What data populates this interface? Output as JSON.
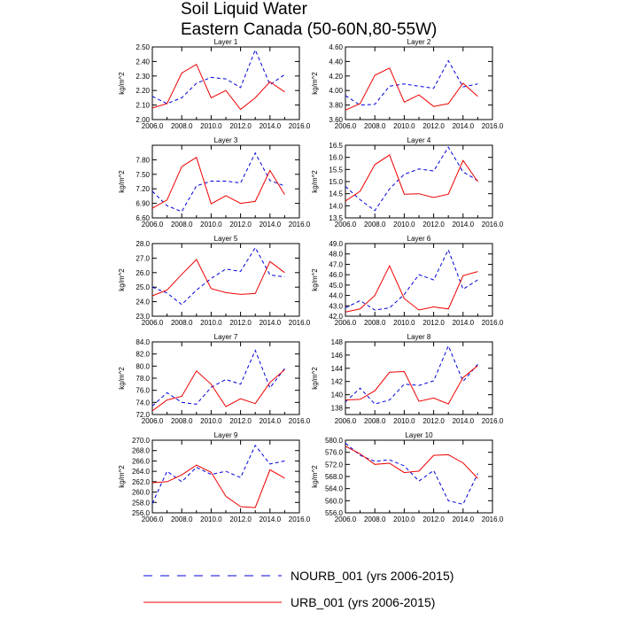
{
  "figure": {
    "title_line1": "Soil Liquid Water",
    "title_line2": "Eastern Canada (50-60N,80-55W)"
  },
  "legend": {
    "items": [
      {
        "label": "NOURB_001 (yrs 2006-2015)",
        "color": "#0000dd",
        "style": "dashed"
      },
      {
        "label": "URB_001 (yrs 2006-2015)",
        "color": "#ee0000",
        "style": "solid"
      }
    ]
  },
  "chart_data": [
    {
      "type": "line",
      "title": "Layer 1",
      "xlabel": "",
      "ylabel": "kg/m^2",
      "x": [
        2006,
        2007,
        2008,
        2009,
        2010,
        2011,
        2012,
        2013,
        2014,
        2015
      ],
      "xlim": [
        2006,
        2016
      ],
      "xticks": [
        "2006.0",
        "2008.0",
        "2010.0",
        "2012.0",
        "2014.0",
        "2016.0"
      ],
      "ylim": [
        2.0,
        2.5
      ],
      "yticks": [
        "2.00",
        "2.10",
        "2.20",
        "2.30",
        "2.40",
        "2.50"
      ],
      "series": [
        {
          "name": "NOURB_001 (yrs 2006-2015)",
          "values": [
            2.16,
            2.11,
            2.15,
            2.25,
            2.29,
            2.28,
            2.22,
            2.48,
            2.24,
            2.31
          ]
        },
        {
          "name": "URB_001 (yrs 2006-2015)",
          "values": [
            2.08,
            2.11,
            2.32,
            2.38,
            2.15,
            2.2,
            2.07,
            2.15,
            2.26,
            2.19
          ]
        }
      ]
    },
    {
      "type": "line",
      "title": "Layer 2",
      "xlabel": "",
      "ylabel": "kg/m^2",
      "x": [
        2006,
        2007,
        2008,
        2009,
        2010,
        2011,
        2012,
        2013,
        2014,
        2015
      ],
      "xlim": [
        2006,
        2016
      ],
      "xticks": [
        "2006.0",
        "2008.0",
        "2010.0",
        "2012.0",
        "2014.0",
        "2016.0"
      ],
      "ylim": [
        3.6,
        4.6
      ],
      "yticks": [
        "3.60",
        "3.80",
        "4.00",
        "4.20",
        "4.40",
        "4.60"
      ],
      "series": [
        {
          "name": "NOURB_001 (yrs 2006-2015)",
          "values": [
            3.93,
            3.8,
            3.81,
            4.06,
            4.09,
            4.06,
            4.03,
            4.41,
            4.05,
            4.09
          ]
        },
        {
          "name": "URB_001 (yrs 2006-2015)",
          "values": [
            3.73,
            3.82,
            4.21,
            4.31,
            3.84,
            3.94,
            3.78,
            3.82,
            4.1,
            3.92
          ]
        }
      ]
    },
    {
      "type": "line",
      "title": "Layer 3",
      "xlabel": "",
      "ylabel": "kg/m^2",
      "x": [
        2006,
        2007,
        2008,
        2009,
        2010,
        2011,
        2012,
        2013,
        2014,
        2015
      ],
      "xlim": [
        2006,
        2016
      ],
      "xticks": [
        "2006.0",
        "2008.0",
        "2010.0",
        "2012.0",
        "2014.0",
        "2016.0"
      ],
      "ylim": [
        6.6,
        8.1
      ],
      "yticks": [
        "6.60",
        "6.90",
        "7.20",
        "7.50",
        "7.80"
      ],
      "series": [
        {
          "name": "NOURB_001 (yrs 2006-2015)",
          "values": [
            7.15,
            6.85,
            6.73,
            7.26,
            7.36,
            7.36,
            7.32,
            7.94,
            7.37,
            7.26
          ]
        },
        {
          "name": "URB_001 (yrs 2006-2015)",
          "values": [
            6.8,
            6.97,
            7.66,
            7.85,
            6.89,
            7.06,
            6.9,
            6.94,
            7.58,
            7.08
          ]
        }
      ]
    },
    {
      "type": "line",
      "title": "Layer 4",
      "xlabel": "",
      "ylabel": "kg/m^2",
      "x": [
        2006,
        2007,
        2008,
        2009,
        2010,
        2011,
        2012,
        2013,
        2014,
        2015
      ],
      "xlim": [
        2006,
        2016
      ],
      "xticks": [
        "2006.0",
        "2008.0",
        "2010.0",
        "2012.0",
        "2014.0",
        "2016.0"
      ],
      "ylim": [
        13.5,
        16.5
      ],
      "yticks": [
        "13.5",
        "14.0",
        "14.5",
        "15.0",
        "15.5",
        "16.0",
        "16.5"
      ],
      "series": [
        {
          "name": "NOURB_001 (yrs 2006-2015)",
          "values": [
            14.8,
            14.25,
            13.8,
            14.7,
            15.3,
            15.52,
            15.44,
            16.42,
            15.4,
            15.04
          ]
        },
        {
          "name": "URB_001 (yrs 2006-2015)",
          "values": [
            14.2,
            14.6,
            15.7,
            16.1,
            14.48,
            14.5,
            14.34,
            14.48,
            15.87,
            15.0
          ]
        }
      ]
    },
    {
      "type": "line",
      "title": "Layer 5",
      "xlabel": "",
      "ylabel": "kg/m^2",
      "x": [
        2006,
        2007,
        2008,
        2009,
        2010,
        2011,
        2012,
        2013,
        2014,
        2015
      ],
      "xlim": [
        2006,
        2016
      ],
      "xticks": [
        "2006.0",
        "2008.0",
        "2010.0",
        "2012.0",
        "2014.0",
        "2016.0"
      ],
      "ylim": [
        23.0,
        28.0
      ],
      "yticks": [
        "23.0",
        "24.0",
        "25.0",
        "26.0",
        "27.0",
        "28.0"
      ],
      "series": [
        {
          "name": "NOURB_001 (yrs 2006-2015)",
          "values": [
            25.0,
            24.6,
            23.8,
            24.8,
            25.6,
            26.25,
            26.08,
            27.72,
            25.84,
            25.7
          ]
        },
        {
          "name": "URB_001 (yrs 2006-2015)",
          "values": [
            24.4,
            24.8,
            25.88,
            26.9,
            24.9,
            24.62,
            24.5,
            24.56,
            26.76,
            26.0
          ]
        }
      ]
    },
    {
      "type": "line",
      "title": "Layer 6",
      "xlabel": "",
      "ylabel": "kg/m^2",
      "x": [
        2006,
        2007,
        2008,
        2009,
        2010,
        2011,
        2012,
        2013,
        2014,
        2015
      ],
      "xlim": [
        2006,
        2016
      ],
      "xticks": [
        "2006.0",
        "2008.0",
        "2010.0",
        "2012.0",
        "2014.0",
        "2016.0"
      ],
      "ylim": [
        42.0,
        49.0
      ],
      "yticks": [
        "42.0",
        "43.0",
        "44.0",
        "45.0",
        "46.0",
        "47.0",
        "48.0",
        "49.0"
      ],
      "series": [
        {
          "name": "NOURB_001 (yrs 2006-2015)",
          "values": [
            42.8,
            43.5,
            42.6,
            42.8,
            44.1,
            46.0,
            45.5,
            48.4,
            44.6,
            45.5
          ]
        },
        {
          "name": "URB_001 (yrs 2006-2015)",
          "values": [
            42.4,
            42.7,
            44.0,
            46.85,
            43.7,
            42.6,
            42.9,
            42.7,
            45.9,
            46.3
          ]
        }
      ]
    },
    {
      "type": "line",
      "title": "Layer 7",
      "xlabel": "",
      "ylabel": "kg/m^2",
      "x": [
        2006,
        2007,
        2008,
        2009,
        2010,
        2011,
        2012,
        2013,
        2014,
        2015
      ],
      "xlim": [
        2006,
        2016
      ],
      "xticks": [
        "2006.0",
        "2008.0",
        "2010.0",
        "2012.0",
        "2014.0",
        "2016.0"
      ],
      "ylim": [
        72.0,
        84.0
      ],
      "yticks": [
        "72.0",
        "74.0",
        "76.0",
        "78.0",
        "80.0",
        "82.0",
        "84.0"
      ],
      "series": [
        {
          "name": "NOURB_001 (yrs 2006-2015)",
          "values": [
            73.4,
            75.6,
            74.0,
            73.7,
            76.5,
            77.8,
            77.0,
            82.6,
            76.4,
            79.6
          ]
        },
        {
          "name": "URB_001 (yrs 2006-2015)",
          "values": [
            72.6,
            74.4,
            75.0,
            79.2,
            77.0,
            73.3,
            74.6,
            73.8,
            77.3,
            79.4
          ]
        }
      ]
    },
    {
      "type": "line",
      "title": "Layer 8",
      "xlabel": "",
      "ylabel": "kg/m^2",
      "x": [
        2006,
        2007,
        2008,
        2009,
        2010,
        2011,
        2012,
        2013,
        2014,
        2015
      ],
      "xlim": [
        2006,
        2016
      ],
      "xticks": [
        "2006.0",
        "2008.0",
        "2010.0",
        "2012.0",
        "2014.0",
        "2016.0"
      ],
      "ylim": [
        137.0,
        148.0
      ],
      "yticks": [
        "138",
        "140",
        "142",
        "144",
        "146",
        "148"
      ],
      "series": [
        {
          "name": "NOURB_001 (yrs 2006-2015)",
          "values": [
            138.9,
            141.0,
            138.6,
            139.2,
            141.6,
            141.4,
            142.1,
            147.4,
            142.0,
            144.6
          ]
        },
        {
          "name": "URB_001 (yrs 2006-2015)",
          "values": [
            139.2,
            139.3,
            140.6,
            143.4,
            143.5,
            139.0,
            139.5,
            138.6,
            142.6,
            144.4
          ]
        }
      ]
    },
    {
      "type": "line",
      "title": "Layer 9",
      "xlabel": "",
      "ylabel": "kg/m^2",
      "x": [
        2006,
        2007,
        2008,
        2009,
        2010,
        2011,
        2012,
        2013,
        2014,
        2015
      ],
      "xlim": [
        2006,
        2016
      ],
      "xticks": [
        "2006.0",
        "2008.0",
        "2010.0",
        "2012.0",
        "2014.0",
        "2016.0"
      ],
      "ylim": [
        256.0,
        270.0
      ],
      "yticks": [
        "256.0",
        "258.0",
        "260.0",
        "262.0",
        "264.0",
        "266.0",
        "268.0",
        "270.0"
      ],
      "series": [
        {
          "name": "NOURB_001 (yrs 2006-2015)",
          "values": [
            257.8,
            264.0,
            262.0,
            264.8,
            263.4,
            264.0,
            262.8,
            269.0,
            265.4,
            266.0
          ]
        },
        {
          "name": "URB_001 (yrs 2006-2015)",
          "values": [
            261.8,
            262.0,
            263.3,
            265.2,
            263.8,
            259.2,
            257.2,
            257.0,
            264.3,
            262.7
          ]
        }
      ]
    },
    {
      "type": "line",
      "title": "Layer 10",
      "xlabel": "",
      "ylabel": "kg/m^2",
      "x": [
        2006,
        2007,
        2008,
        2009,
        2010,
        2011,
        2012,
        2013,
        2014,
        2015
      ],
      "xlim": [
        2006,
        2016
      ],
      "xticks": [
        "2006.0",
        "2008.0",
        "2010.0",
        "2012.0",
        "2014.0",
        "2016.0"
      ],
      "ylim": [
        556.0,
        580.0
      ],
      "yticks": [
        "556.0",
        "560.0",
        "564.0",
        "568.0",
        "572.0",
        "576.0",
        "580.0"
      ],
      "series": [
        {
          "name": "NOURB_001 (yrs 2006-2015)",
          "values": [
            579.0,
            575.0,
            573.0,
            573.5,
            571.5,
            566.5,
            570.0,
            560.0,
            558.8,
            569.0
          ]
        },
        {
          "name": "URB_001 (yrs 2006-2015)",
          "values": [
            578.0,
            575.5,
            572.0,
            572.4,
            569.3,
            569.8,
            575.0,
            575.2,
            572.5,
            567.4
          ]
        }
      ]
    }
  ]
}
